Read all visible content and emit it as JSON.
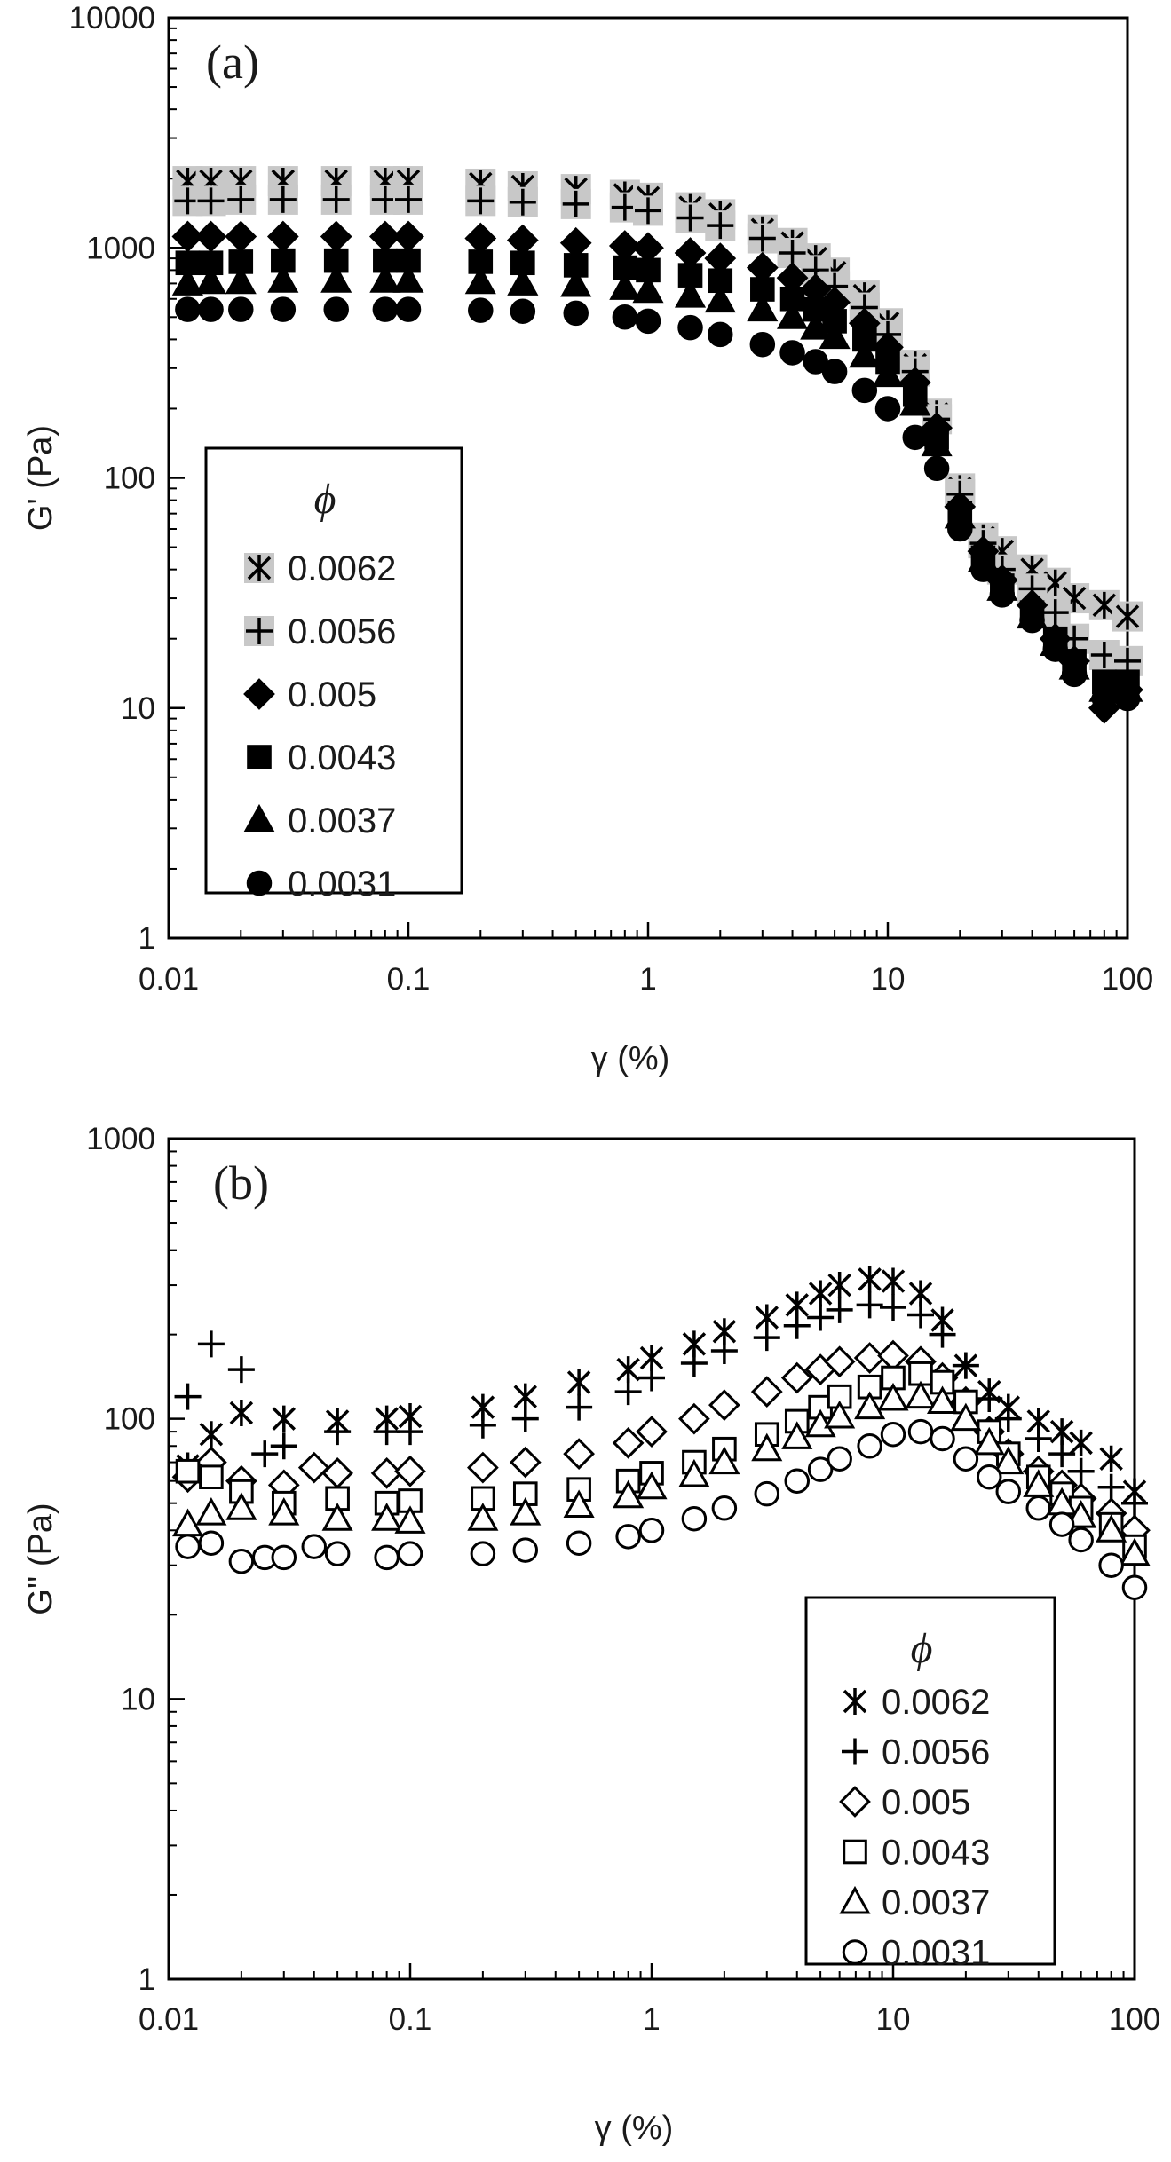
{
  "chart_data": [
    {
      "type": "scatter",
      "panel_label": "(a)",
      "xlabel": "γ (%)",
      "ylabel": "G' (Pa)",
      "xscale": "log",
      "yscale": "log",
      "xlim": [
        0.01,
        100
      ],
      "ylim": [
        1,
        10000
      ],
      "xticks": [
        "0.01",
        "0.1",
        "1",
        "10",
        "100"
      ],
      "yticks": [
        "1",
        "10",
        "100",
        "1000",
        "10000"
      ],
      "grid": false,
      "legend": {
        "title": "ϕ",
        "placement": "left-middle"
      },
      "series": [
        {
          "name": "0.0062",
          "marker": "asterisk",
          "filled": true,
          "x": [
            0.012,
            0.015,
            0.02,
            0.03,
            0.05,
            0.08,
            0.1,
            0.2,
            0.3,
            0.5,
            0.8,
            1,
            1.5,
            2,
            3,
            4,
            5,
            6,
            8,
            10,
            13,
            16,
            20,
            25,
            30,
            40,
            50,
            60,
            80,
            100
          ],
          "y": [
            1950,
            1950,
            1950,
            1950,
            1950,
            1950,
            1950,
            1900,
            1850,
            1800,
            1700,
            1650,
            1500,
            1400,
            1200,
            1050,
            900,
            780,
            620,
            470,
            310,
            190,
            90,
            55,
            48,
            40,
            35,
            30,
            28,
            25
          ]
        },
        {
          "name": "0.0056",
          "marker": "plus",
          "filled": true,
          "x": [
            0.012,
            0.015,
            0.02,
            0.03,
            0.05,
            0.08,
            0.1,
            0.2,
            0.3,
            0.5,
            0.8,
            1,
            1.5,
            2,
            3,
            4,
            5,
            6,
            8,
            10,
            13,
            16,
            20,
            25,
            30,
            40,
            50,
            60,
            80,
            100
          ],
          "y": [
            1600,
            1600,
            1620,
            1620,
            1620,
            1620,
            1620,
            1600,
            1580,
            1550,
            1500,
            1450,
            1350,
            1250,
            1100,
            950,
            800,
            680,
            550,
            420,
            290,
            180,
            85,
            52,
            40,
            33,
            26,
            20,
            17,
            16
          ]
        },
        {
          "name": "0.005",
          "marker": "diamond",
          "filled": true,
          "x": [
            0.012,
            0.015,
            0.02,
            0.03,
            0.05,
            0.08,
            0.1,
            0.2,
            0.3,
            0.5,
            0.8,
            1,
            1.5,
            2,
            3,
            4,
            5,
            6,
            8,
            10,
            13,
            16,
            20,
            25,
            30,
            40,
            50,
            60,
            80,
            100
          ],
          "y": [
            1120,
            1120,
            1120,
            1120,
            1120,
            1120,
            1120,
            1100,
            1080,
            1050,
            1020,
            1000,
            950,
            900,
            820,
            740,
            660,
            580,
            470,
            370,
            260,
            165,
            75,
            48,
            36,
            28,
            20,
            16,
            10,
            12
          ]
        },
        {
          "name": "0.0043",
          "marker": "square",
          "filled": true,
          "x": [
            0.012,
            0.015,
            0.02,
            0.03,
            0.05,
            0.08,
            0.1,
            0.2,
            0.3,
            0.5,
            0.8,
            1,
            1.5,
            2,
            3,
            4,
            5,
            6,
            8,
            10,
            13,
            16,
            20,
            25,
            30,
            40,
            50,
            60,
            80,
            100
          ],
          "y": [
            860,
            860,
            870,
            880,
            880,
            880,
            880,
            870,
            860,
            840,
            820,
            800,
            760,
            720,
            660,
            600,
            540,
            480,
            400,
            320,
            230,
            150,
            70,
            45,
            34,
            26,
            20,
            16,
            13,
            13
          ]
        },
        {
          "name": "0.0037",
          "marker": "triangle",
          "filled": true,
          "x": [
            0.012,
            0.015,
            0.02,
            0.03,
            0.05,
            0.08,
            0.1,
            0.2,
            0.3,
            0.5,
            0.8,
            1,
            1.5,
            2,
            3,
            4,
            5,
            6,
            8,
            10,
            13,
            16,
            20,
            25,
            30,
            40,
            50,
            60,
            80,
            100
          ],
          "y": [
            700,
            710,
            710,
            720,
            720,
            720,
            720,
            710,
            700,
            690,
            670,
            650,
            620,
            590,
            540,
            500,
            450,
            410,
            340,
            280,
            210,
            140,
            68,
            44,
            33,
            25,
            19,
            15,
            12,
            12
          ]
        },
        {
          "name": "0.0031",
          "marker": "circle",
          "filled": true,
          "x": [
            0.012,
            0.015,
            0.02,
            0.03,
            0.05,
            0.08,
            0.1,
            0.2,
            0.3,
            0.5,
            0.8,
            1,
            1.5,
            2,
            3,
            4,
            5,
            6,
            8,
            10,
            13,
            16,
            20,
            25,
            30,
            40,
            50,
            60,
            80,
            100
          ],
          "y": [
            540,
            540,
            540,
            540,
            540,
            540,
            540,
            535,
            530,
            520,
            500,
            480,
            450,
            420,
            380,
            350,
            320,
            290,
            240,
            200,
            150,
            110,
            60,
            40,
            31,
            24,
            18,
            14,
            11,
            11
          ]
        }
      ]
    },
    {
      "type": "scatter",
      "panel_label": "(b)",
      "xlabel": "γ (%)",
      "ylabel": "G'' (Pa)",
      "xscale": "log",
      "yscale": "log",
      "xlim": [
        0.01,
        100
      ],
      "ylim": [
        1,
        1000
      ],
      "xticks": [
        "0.01",
        "0.1",
        "1",
        "10",
        "100"
      ],
      "yticks": [
        "1",
        "10",
        "100",
        "1000"
      ],
      "grid": false,
      "legend": {
        "title": "ϕ",
        "placement": "bottom-right"
      },
      "series": [
        {
          "name": "0.0062",
          "marker": "asterisk",
          "filled": false,
          "x": [
            0.012,
            0.015,
            0.02,
            0.03,
            0.05,
            0.08,
            0.1,
            0.2,
            0.3,
            0.5,
            0.8,
            1,
            1.5,
            2,
            3,
            4,
            5,
            6,
            8,
            10,
            13,
            16,
            20,
            25,
            30,
            40,
            50,
            60,
            80,
            100
          ],
          "y": [
            68,
            88,
            105,
            100,
            98,
            100,
            102,
            110,
            120,
            135,
            150,
            165,
            185,
            205,
            230,
            255,
            280,
            300,
            315,
            310,
            280,
            225,
            155,
            125,
            110,
            98,
            90,
            82,
            72,
            55
          ]
        },
        {
          "name": "0.0056",
          "marker": "plus",
          "filled": false,
          "x": [
            0.012,
            0.015,
            0.02,
            0.025,
            0.03,
            0.05,
            0.08,
            0.1,
            0.2,
            0.3,
            0.5,
            0.8,
            1,
            1.5,
            2,
            3,
            4,
            5,
            6,
            8,
            10,
            13,
            16,
            20,
            25,
            30,
            40,
            50,
            60,
            80,
            100
          ],
          "y": [
            120,
            185,
            150,
            75,
            80,
            90,
            90,
            90,
            95,
            100,
            110,
            125,
            140,
            158,
            175,
            195,
            215,
            230,
            245,
            255,
            250,
            235,
            200,
            155,
            118,
            100,
            85,
            75,
            65,
            57,
            50
          ]
        },
        {
          "name": "0.005",
          "marker": "diamond",
          "filled": false,
          "x": [
            0.012,
            0.015,
            0.02,
            0.03,
            0.04,
            0.05,
            0.08,
            0.1,
            0.2,
            0.3,
            0.5,
            0.8,
            1,
            1.5,
            2,
            3,
            4,
            5,
            6,
            8,
            10,
            13,
            16,
            20,
            25,
            30,
            40,
            50,
            60,
            80,
            100
          ],
          "y": [
            62,
            70,
            60,
            58,
            67,
            64,
            64,
            65,
            67,
            70,
            75,
            82,
            90,
            100,
            112,
            125,
            140,
            150,
            160,
            165,
            168,
            160,
            140,
            115,
            90,
            75,
            65,
            58,
            52,
            46,
            40
          ]
        },
        {
          "name": "0.0043",
          "marker": "square",
          "filled": false,
          "x": [
            0.012,
            0.015,
            0.02,
            0.03,
            0.05,
            0.08,
            0.1,
            0.2,
            0.3,
            0.5,
            0.8,
            1,
            1.5,
            2,
            3,
            4,
            5,
            6,
            8,
            10,
            13,
            16,
            20,
            25,
            30,
            40,
            50,
            60,
            80,
            100
          ],
          "y": [
            65,
            62,
            55,
            50,
            52,
            50,
            51,
            52,
            54,
            56,
            60,
            64,
            70,
            78,
            88,
            98,
            110,
            120,
            130,
            140,
            145,
            135,
            115,
            90,
            75,
            62,
            54,
            48,
            42,
            35
          ]
        },
        {
          "name": "0.0037",
          "marker": "triangle",
          "filled": false,
          "x": [
            0.012,
            0.015,
            0.02,
            0.03,
            0.05,
            0.08,
            0.1,
            0.2,
            0.3,
            0.5,
            0.8,
            1,
            1.5,
            2,
            3,
            4,
            5,
            6,
            8,
            10,
            13,
            16,
            20,
            25,
            30,
            40,
            50,
            60,
            80,
            100
          ],
          "y": [
            42,
            46,
            48,
            46,
            44,
            44,
            43,
            44,
            46,
            49,
            53,
            57,
            63,
            70,
            78,
            86,
            95,
            102,
            110,
            118,
            120,
            115,
            100,
            82,
            70,
            58,
            50,
            45,
            40,
            33
          ]
        },
        {
          "name": "0.0031",
          "marker": "circle",
          "filled": false,
          "x": [
            0.012,
            0.015,
            0.02,
            0.025,
            0.03,
            0.04,
            0.05,
            0.08,
            0.1,
            0.2,
            0.3,
            0.5,
            0.8,
            1,
            1.5,
            2,
            3,
            4,
            5,
            6,
            8,
            10,
            13,
            16,
            20,
            25,
            30,
            40,
            50,
            60,
            80,
            100
          ],
          "y": [
            35,
            36,
            31,
            32,
            32,
            35,
            33,
            32,
            33,
            33,
            34,
            36,
            38,
            40,
            44,
            48,
            54,
            60,
            66,
            72,
            80,
            88,
            90,
            85,
            72,
            62,
            55,
            48,
            42,
            37,
            30,
            25
          ]
        }
      ]
    }
  ]
}
